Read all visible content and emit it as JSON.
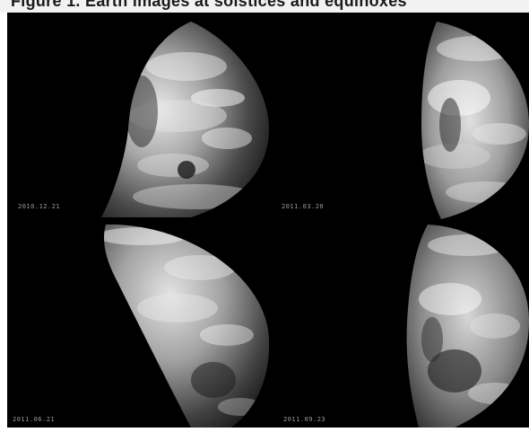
{
  "header": {
    "cropped_title": "Figure 1. Earth images at solstices and equinoxes"
  },
  "panels": [
    {
      "id": "top-left",
      "date": "2010.12.21"
    },
    {
      "id": "top-right",
      "date": "2011.03.20"
    },
    {
      "id": "bottom-left",
      "date": "2011.06.21"
    },
    {
      "id": "bottom-right",
      "date": "2011.09.23"
    }
  ]
}
